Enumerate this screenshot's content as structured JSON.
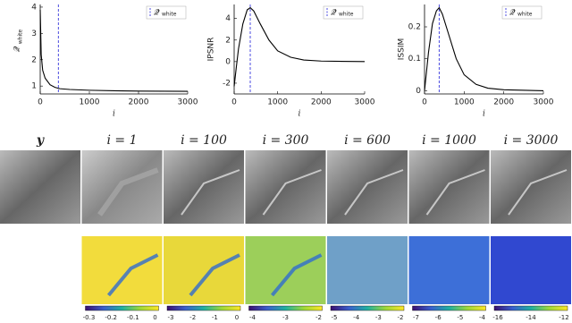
{
  "chart_data": [
    {
      "type": "line",
      "ylabel": "𝒬",
      "ylabel_sub": "white",
      "xlabel": "i",
      "legend_symbol": "𝒬̄",
      "legend_sub": "white",
      "vline_x": 370,
      "vline_color": "#4a4ae0",
      "xlim": [
        0,
        3000
      ],
      "xticks": [
        0,
        1000,
        2000,
        3000
      ],
      "ylim": [
        0.7,
        4.1
      ],
      "yticks": [
        1,
        2,
        3,
        4
      ],
      "series": [
        {
          "color": "#000000",
          "x": [
            0,
            20,
            50,
            100,
            200,
            300,
            400,
            600,
            1000,
            1500,
            2000,
            3000
          ],
          "values": [
            3.9,
            2.2,
            1.6,
            1.3,
            1.05,
            0.95,
            0.9,
            0.87,
            0.84,
            0.82,
            0.81,
            0.8
          ]
        }
      ]
    },
    {
      "type": "line",
      "ylabel": "IPSNR",
      "xlabel": "i",
      "legend_symbol": "𝒬̄",
      "legend_sub": "white",
      "vline_x": 370,
      "vline_color": "#4a4ae0",
      "xlim": [
        0,
        3000
      ],
      "xticks": [
        0,
        1000,
        2000,
        3000
      ],
      "ylim": [
        -3,
        5.3
      ],
      "yticks": [
        -2,
        0,
        2,
        4
      ],
      "series": [
        {
          "color": "#000000",
          "x": [
            0,
            50,
            100,
            200,
            300,
            370,
            450,
            600,
            800,
            1000,
            1300,
            1600,
            2000,
            3000
          ],
          "values": [
            -2.3,
            -0.5,
            1.2,
            3.5,
            4.8,
            5.0,
            4.7,
            3.5,
            2.0,
            1.0,
            0.4,
            0.15,
            0.05,
            0
          ]
        }
      ]
    },
    {
      "type": "line",
      "ylabel": "ISSIM",
      "xlabel": "i",
      "legend_symbol": "𝒬̄",
      "legend_sub": "white",
      "vline_x": 370,
      "vline_color": "#4a4ae0",
      "xlim": [
        0,
        3000
      ],
      "xticks": [
        0,
        1000,
        2000,
        3000
      ],
      "ylim": [
        -0.01,
        0.27
      ],
      "yticks": [
        0,
        0.1,
        0.2
      ],
      "series": [
        {
          "color": "#000000",
          "x": [
            0,
            50,
            100,
            200,
            300,
            370,
            450,
            600,
            800,
            1000,
            1300,
            1600,
            2000,
            3000
          ],
          "values": [
            0,
            0.06,
            0.12,
            0.21,
            0.25,
            0.26,
            0.24,
            0.18,
            0.1,
            0.05,
            0.02,
            0.008,
            0.003,
            0
          ]
        }
      ]
    }
  ],
  "figure": {
    "columns": [
      "y",
      "i = 1",
      "i = 100",
      "i = 300",
      "i = 600",
      "i = 1000",
      "i = 3000"
    ],
    "colorbars": [
      [
        "-0.3",
        "-0.2",
        "-0.1",
        "0"
      ],
      [
        "-3",
        "-2",
        "-1",
        "0"
      ],
      [
        "-4",
        "-3",
        "-2"
      ],
      [
        "-5",
        "-4",
        "-3",
        "-2"
      ],
      [
        "-7",
        "-6",
        "-5",
        "-4"
      ],
      [
        "-16",
        "-14",
        "-12"
      ]
    ]
  }
}
